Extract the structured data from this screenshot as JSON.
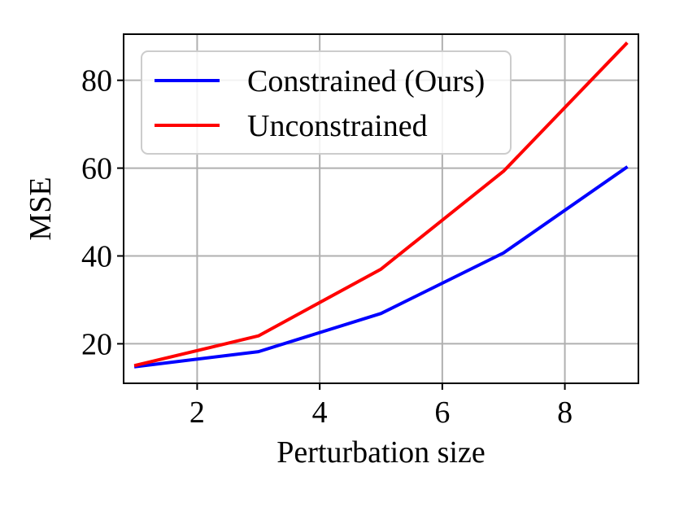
{
  "chart_data": {
    "type": "line",
    "xlabel": "Perturbation size",
    "ylabel": "MSE",
    "xlim": [
      0.8,
      9.2
    ],
    "ylim": [
      11,
      90.5
    ],
    "xticks": [
      2,
      4,
      6,
      8
    ],
    "yticks": [
      20,
      40,
      60,
      80
    ],
    "grid": true,
    "legend_position": "top-left",
    "series": [
      {
        "name": "Constrained (Ours)",
        "color": "#0000ff",
        "x": [
          1,
          3,
          5,
          7,
          9
        ],
        "y": [
          14.8,
          18.2,
          26.9,
          40.7,
          60.1
        ]
      },
      {
        "name": "Unconstrained",
        "color": "#ff0000",
        "x": [
          1,
          3,
          5,
          7,
          9
        ],
        "y": [
          15.1,
          21.8,
          37.0,
          59.3,
          88.3
        ]
      }
    ]
  }
}
